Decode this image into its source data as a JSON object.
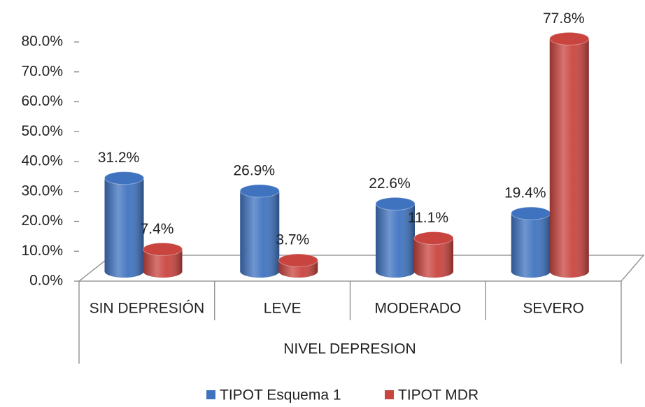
{
  "chart_data": {
    "type": "bar3d",
    "categories": [
      "SIN DEPRESIÓN",
      "LEVE",
      "MODERADO",
      "SEVERO"
    ],
    "xlabel": "NIVEL DEPRESION",
    "series": [
      {
        "name": "TIPOT Esquema 1",
        "color": "#3f73c0",
        "values": [
          31.2,
          26.9,
          22.6,
          19.4
        ],
        "value_labels": [
          "31.2%",
          "26.9%",
          "22.6%",
          "19.4%"
        ]
      },
      {
        "name": "TIPOT MDR",
        "color": "#c9443f",
        "values": [
          7.4,
          3.7,
          11.1,
          77.8
        ],
        "value_labels": [
          "7.4%",
          "3.7%",
          "11.1%",
          "77.8%"
        ]
      }
    ],
    "ylim": [
      0,
      80
    ],
    "yticks": [
      {
        "value": 0,
        "label": "0.0%"
      },
      {
        "value": 10,
        "label": "10.0%"
      },
      {
        "value": 20,
        "label": "20.0%"
      },
      {
        "value": 30,
        "label": "30.0%"
      },
      {
        "value": 40,
        "label": "40.0%"
      },
      {
        "value": 50,
        "label": "50.0%"
      },
      {
        "value": 60,
        "label": "60.0%"
      },
      {
        "value": 70,
        "label": "70.0%"
      },
      {
        "value": 80,
        "label": "80.0%"
      }
    ],
    "legend": "bottom"
  }
}
